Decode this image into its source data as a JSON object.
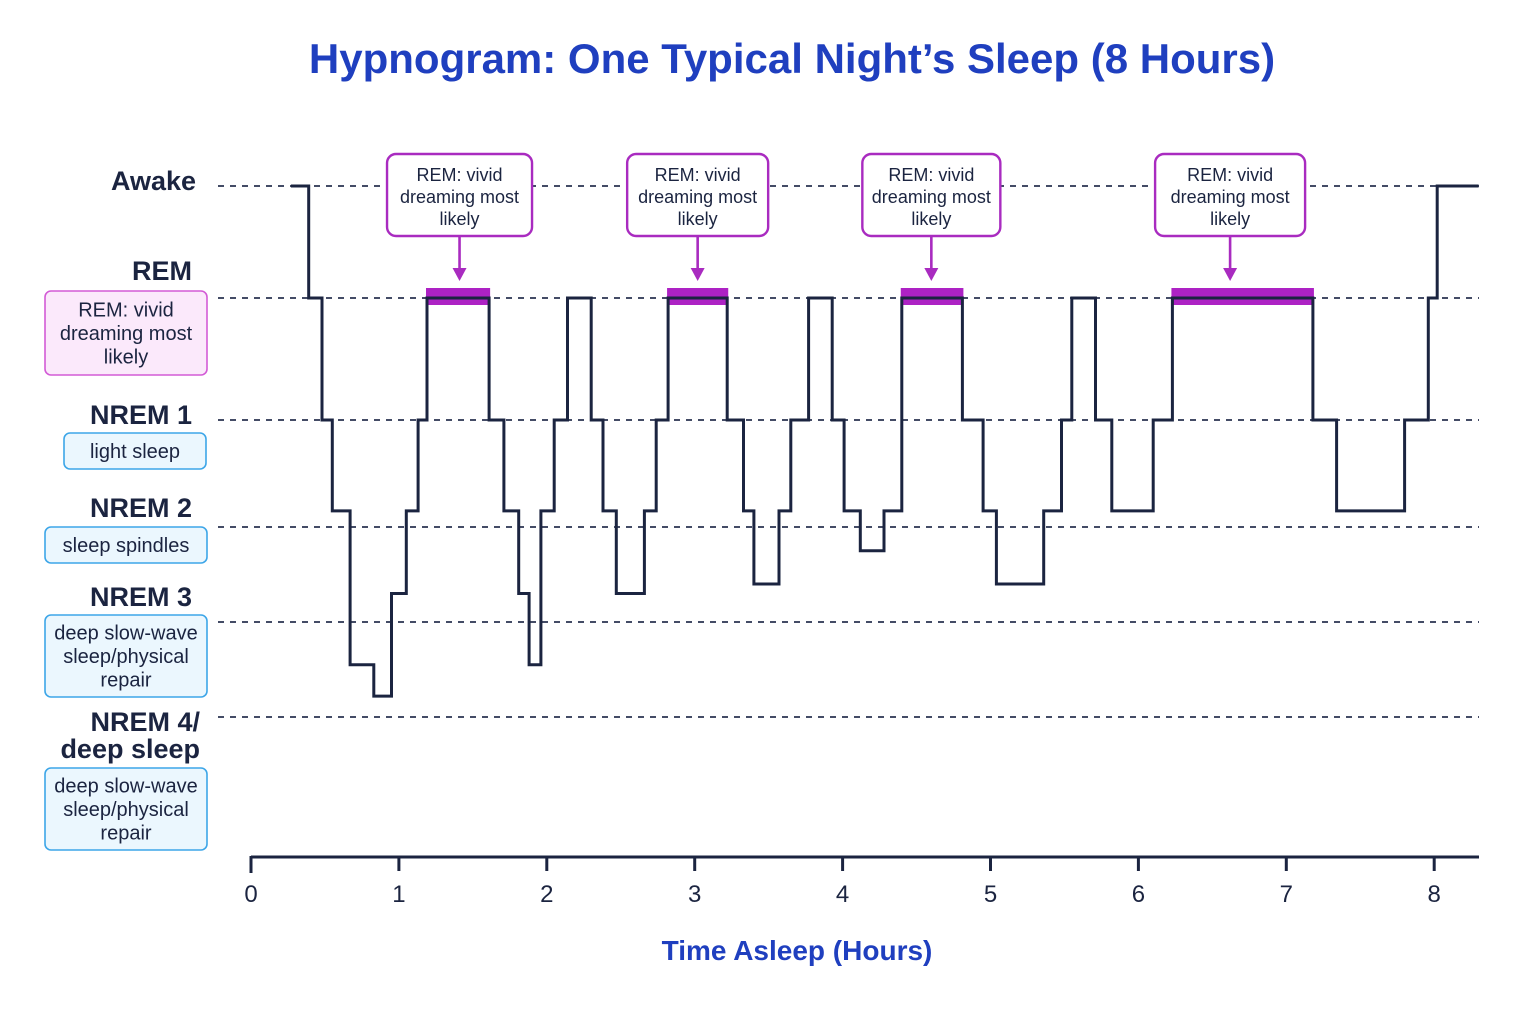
{
  "chart_data": {
    "type": "line",
    "title": "Hypnogram: One Typical Night’s Sleep (8 Hours)",
    "xlabel": "Time Asleep (Hours)",
    "ylabel": "",
    "xlim": [
      0,
      8.3
    ],
    "x_ticks": [
      "0",
      "1",
      "2",
      "3",
      "4",
      "5",
      "6",
      "7",
      "8"
    ],
    "stages": [
      {
        "key": "awake",
        "label": "Awake",
        "description": ""
      },
      {
        "key": "rem",
        "label": "REM",
        "description": "REM: vivid dreaming most likely"
      },
      {
        "key": "nrem1",
        "label": "NREM 1",
        "description": "light sleep"
      },
      {
        "key": "nrem2",
        "label": "NREM 2",
        "description": "sleep spindles"
      },
      {
        "key": "nrem3",
        "label": "NREM 3",
        "description": "deep slow-wave sleep/physical repair"
      },
      {
        "key": "nrem4",
        "label": "NREM 4/ deep sleep",
        "description": "deep slow-wave sleep/physical repair"
      }
    ],
    "grid": true,
    "series": [
      {
        "values_note": "",
        "points": [
          [
            0.27,
            0.0
          ],
          [
            0.39,
            0.0
          ],
          [
            0.39,
            1.0
          ],
          [
            0.48,
            1.0
          ],
          [
            0.48,
            2.0
          ],
          [
            0.55,
            2.0
          ],
          [
            0.55,
            2.85
          ],
          [
            0.67,
            2.85
          ],
          [
            0.67,
            4.45
          ],
          [
            0.83,
            4.45
          ],
          [
            0.83,
            4.78
          ],
          [
            0.95,
            4.78
          ],
          [
            0.95,
            3.7
          ],
          [
            1.05,
            3.7
          ],
          [
            1.05,
            2.85
          ],
          [
            1.13,
            2.85
          ],
          [
            1.13,
            2.0
          ],
          [
            1.19,
            2.0
          ],
          [
            1.19,
            1.0
          ],
          [
            1.61,
            1.0
          ],
          [
            1.61,
            2.0
          ],
          [
            1.71,
            2.0
          ],
          [
            1.71,
            2.85
          ],
          [
            1.81,
            2.85
          ],
          [
            1.81,
            3.7
          ],
          [
            1.88,
            3.7
          ],
          [
            1.88,
            4.45
          ],
          [
            1.96,
            4.45
          ],
          [
            1.96,
            2.85
          ],
          [
            2.05,
            2.85
          ],
          [
            2.05,
            2.0
          ],
          [
            2.14,
            2.0
          ],
          [
            2.14,
            1.0
          ],
          [
            2.3,
            1.0
          ],
          [
            2.3,
            2.0
          ],
          [
            2.38,
            2.0
          ],
          [
            2.38,
            2.85
          ],
          [
            2.47,
            2.85
          ],
          [
            2.47,
            3.7
          ],
          [
            2.66,
            3.7
          ],
          [
            2.66,
            2.85
          ],
          [
            2.74,
            2.85
          ],
          [
            2.74,
            2.0
          ],
          [
            2.82,
            2.0
          ],
          [
            2.82,
            1.0
          ],
          [
            3.22,
            1.0
          ],
          [
            3.22,
            2.0
          ],
          [
            3.33,
            2.0
          ],
          [
            3.33,
            2.85
          ],
          [
            3.4,
            2.85
          ],
          [
            3.4,
            3.6
          ],
          [
            3.57,
            3.6
          ],
          [
            3.57,
            2.85
          ],
          [
            3.65,
            2.85
          ],
          [
            3.65,
            2.0
          ],
          [
            3.77,
            2.0
          ],
          [
            3.77,
            1.0
          ],
          [
            3.93,
            1.0
          ],
          [
            3.93,
            2.0
          ],
          [
            4.01,
            2.0
          ],
          [
            4.01,
            2.85
          ],
          [
            4.12,
            2.85
          ],
          [
            4.12,
            3.25
          ],
          [
            4.28,
            3.25
          ],
          [
            4.28,
            2.85
          ],
          [
            4.4,
            2.85
          ],
          [
            4.4,
            1.0
          ],
          [
            4.81,
            1.0
          ],
          [
            4.81,
            2.0
          ],
          [
            4.95,
            2.0
          ],
          [
            4.95,
            2.85
          ],
          [
            5.04,
            2.85
          ],
          [
            5.04,
            3.6
          ],
          [
            5.36,
            3.6
          ],
          [
            5.36,
            2.85
          ],
          [
            5.48,
            2.85
          ],
          [
            5.48,
            2.0
          ],
          [
            5.55,
            2.0
          ],
          [
            5.55,
            1.0
          ],
          [
            5.71,
            1.0
          ],
          [
            5.71,
            2.0
          ],
          [
            5.82,
            2.0
          ],
          [
            5.82,
            2.85
          ],
          [
            6.1,
            2.85
          ],
          [
            6.1,
            2.0
          ],
          [
            6.23,
            2.0
          ],
          [
            6.23,
            1.0
          ],
          [
            7.18,
            1.0
          ],
          [
            7.18,
            2.0
          ],
          [
            7.34,
            2.0
          ],
          [
            7.34,
            2.85
          ],
          [
            7.8,
            2.85
          ],
          [
            7.8,
            2.0
          ],
          [
            7.96,
            2.0
          ],
          [
            7.96,
            1.0
          ],
          [
            8.02,
            1.0
          ],
          [
            8.02,
            0.0
          ],
          [
            8.3,
            0.0
          ]
        ]
      }
    ],
    "rem_highlights": [
      [
        1.19,
        1.61
      ],
      [
        2.82,
        3.22
      ],
      [
        4.4,
        4.81
      ],
      [
        6.23,
        7.18
      ]
    ],
    "annotations": [
      {
        "text": "REM: vivid dreaming most likely",
        "x": 1.41
      },
      {
        "text": "REM: vivid dreaming most likely",
        "x": 3.02
      },
      {
        "text": "REM: vivid dreaming most likely",
        "x": 4.6
      },
      {
        "text": "REM: vivid dreaming most likely",
        "x": 6.62
      }
    ],
    "colors": {
      "title": "#1f3fbf",
      "line": "#1b2440",
      "rem_highlight": "#ad22c4",
      "callout_border": "#a92bc0",
      "rem_box_fill": "#fbe9fb",
      "rem_box_border": "#d35bd6",
      "nrem_box_fill": "#ebf7fe",
      "nrem_box_border": "#3da6e8"
    }
  }
}
